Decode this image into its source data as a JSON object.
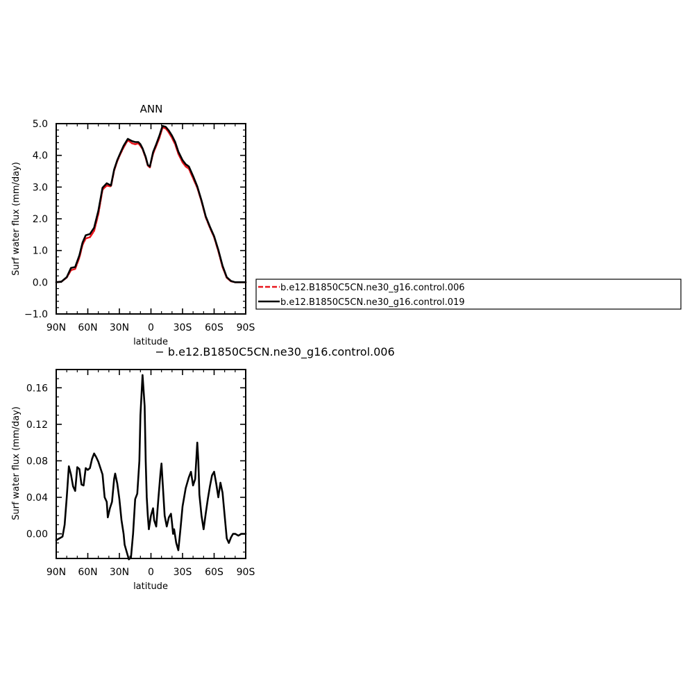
{
  "chart_data": [
    {
      "type": "line",
      "title": "ANN",
      "xlabel": "latitude",
      "ylabel": "Surf water flux (mm/day)",
      "xlim": [
        90,
        -90
      ],
      "ylim": [
        -1.0,
        5.0
      ],
      "x_unit": "degrees latitude (positive = N, negative = S)",
      "x_ticks": [
        90,
        60,
        30,
        0,
        -30,
        -60,
        -90
      ],
      "x_tick_labels": [
        "90N",
        "60N",
        "30N",
        "0",
        "30S",
        "60S",
        "90S"
      ],
      "y_ticks": [
        -1.0,
        0.0,
        1.0,
        2.0,
        3.0,
        4.0,
        5.0
      ],
      "y_tick_labels": [
        "−1.0",
        "0.0",
        "1.0",
        "2.0",
        "3.0",
        "4.0",
        "5.0"
      ],
      "legend_placement": "right, outside the plot",
      "series": [
        {
          "name": "b.e12.B1850C5CN.ne30_g16.control.006",
          "color": "#e8141b",
          "dashed": true,
          "x": [
            90,
            85,
            80,
            76,
            72,
            68,
            65,
            62,
            58,
            54,
            50,
            46,
            42,
            38,
            35,
            32,
            29,
            26,
            22,
            18,
            15,
            12,
            10,
            8,
            5,
            3,
            1,
            0,
            -2,
            -5,
            -8,
            -11,
            -14,
            -17,
            -20,
            -23,
            -26,
            -30,
            -33,
            -36,
            -40,
            -44,
            -48,
            -52,
            -56,
            -60,
            -64,
            -68,
            -72,
            -76,
            -80,
            -85,
            -90
          ],
          "y": [
            0.0,
            0.02,
            0.15,
            0.38,
            0.42,
            0.78,
            1.18,
            1.38,
            1.42,
            1.62,
            2.15,
            2.92,
            3.05,
            3.02,
            3.52,
            3.82,
            4.05,
            4.25,
            4.48,
            4.38,
            4.35,
            4.38,
            4.3,
            4.2,
            3.92,
            3.68,
            3.62,
            3.78,
            4.05,
            4.3,
            4.55,
            4.88,
            4.85,
            4.72,
            4.55,
            4.35,
            4.05,
            3.78,
            3.65,
            3.58,
            3.28,
            2.98,
            2.55,
            2.05,
            1.72,
            1.42,
            0.98,
            0.48,
            0.14,
            0.03,
            0.0,
            0.0,
            0.0
          ]
        },
        {
          "name": "b.e12.B1850C5CN.ne30_g16.control.019",
          "color": "#000000",
          "dashed": false,
          "x": [
            90,
            85,
            80,
            76,
            72,
            68,
            65,
            62,
            58,
            54,
            50,
            46,
            42,
            38,
            35,
            32,
            29,
            26,
            22,
            18,
            15,
            12,
            10,
            8,
            5,
            3,
            1,
            0,
            -2,
            -5,
            -8,
            -11,
            -14,
            -17,
            -20,
            -23,
            -26,
            -30,
            -33,
            -36,
            -40,
            -44,
            -48,
            -52,
            -56,
            -60,
            -64,
            -68,
            -72,
            -76,
            -80,
            -85,
            -90
          ],
          "y": [
            0.0,
            0.02,
            0.16,
            0.45,
            0.48,
            0.85,
            1.25,
            1.48,
            1.52,
            1.72,
            2.25,
            2.98,
            3.12,
            3.05,
            3.55,
            3.85,
            4.08,
            4.3,
            4.52,
            4.45,
            4.42,
            4.42,
            4.35,
            4.22,
            3.95,
            3.7,
            3.65,
            3.8,
            4.1,
            4.35,
            4.62,
            4.93,
            4.9,
            4.78,
            4.62,
            4.42,
            4.12,
            3.85,
            3.72,
            3.65,
            3.35,
            3.02,
            2.58,
            2.08,
            1.75,
            1.45,
            1.02,
            0.52,
            0.16,
            0.04,
            0.0,
            0.0,
            0.0
          ]
        }
      ]
    },
    {
      "type": "line",
      "title": "− b.e12.B1850C5CN.ne30_g16.control.006",
      "xlabel": "latitude",
      "ylabel": "Surf water flux (mm/day)",
      "xlim": [
        90,
        -90
      ],
      "ylim": [
        -0.027,
        0.18
      ],
      "x_unit": "degrees latitude (positive = N, negative = S)",
      "x_ticks": [
        90,
        60,
        30,
        0,
        -30,
        -60,
        -90
      ],
      "x_tick_labels": [
        "90N",
        "60N",
        "30N",
        "0",
        "30S",
        "60S",
        "90S"
      ],
      "y_ticks": [
        0.0,
        0.04,
        0.08,
        0.12,
        0.16
      ],
      "y_tick_labels": [
        "0.00",
        "0.04",
        "0.08",
        "0.12",
        "0.16"
      ],
      "series": [
        {
          "color": "#000000",
          "dashed": false,
          "x": [
            90,
            87,
            84,
            82,
            80,
            78,
            76,
            74,
            72,
            70,
            68,
            66,
            64,
            62,
            60,
            58,
            56,
            54,
            52,
            50,
            48,
            46,
            44,
            42,
            41,
            39,
            37,
            35,
            34,
            32,
            30,
            28,
            26,
            25,
            23,
            21,
            19,
            17,
            15,
            13,
            11,
            10,
            8,
            6,
            5,
            4,
            3,
            2,
            0,
            -2,
            -3,
            -5,
            -7,
            -9,
            -10,
            -11,
            -13,
            -15,
            -17,
            -19,
            -20,
            -21,
            -22,
            -24,
            -26,
            -28,
            -30,
            -33,
            -36,
            -38,
            -40,
            -42,
            -44,
            -45,
            -46,
            -48,
            -50,
            -52,
            -54,
            -56,
            -58,
            -60,
            -62,
            -64,
            -66,
            -68,
            -70,
            -72,
            -74,
            -76,
            -78,
            -80,
            -83,
            -86,
            -90
          ],
          "y": [
            -0.007,
            -0.005,
            -0.003,
            0.01,
            0.04,
            0.074,
            0.065,
            0.052,
            0.047,
            0.073,
            0.071,
            0.054,
            0.053,
            0.072,
            0.07,
            0.072,
            0.082,
            0.088,
            0.084,
            0.079,
            0.072,
            0.065,
            0.04,
            0.035,
            0.018,
            0.028,
            0.035,
            0.06,
            0.066,
            0.055,
            0.038,
            0.015,
            0.0,
            -0.012,
            -0.02,
            -0.028,
            -0.026,
            0.0,
            0.038,
            0.044,
            0.08,
            0.13,
            0.174,
            0.14,
            0.08,
            0.04,
            0.02,
            0.005,
            0.02,
            0.028,
            0.015,
            0.008,
            0.038,
            0.066,
            0.077,
            0.058,
            0.02,
            0.008,
            0.018,
            0.022,
            0.012,
            0.0,
            0.005,
            -0.01,
            -0.018,
            0.005,
            0.03,
            0.05,
            0.062,
            0.068,
            0.053,
            0.06,
            0.1,
            0.08,
            0.043,
            0.02,
            0.005,
            0.022,
            0.038,
            0.052,
            0.064,
            0.068,
            0.055,
            0.04,
            0.056,
            0.045,
            0.02,
            -0.005,
            -0.01,
            -0.004,
            0.0,
            0.0,
            -0.002,
            0.0,
            0.0
          ]
        }
      ]
    }
  ]
}
